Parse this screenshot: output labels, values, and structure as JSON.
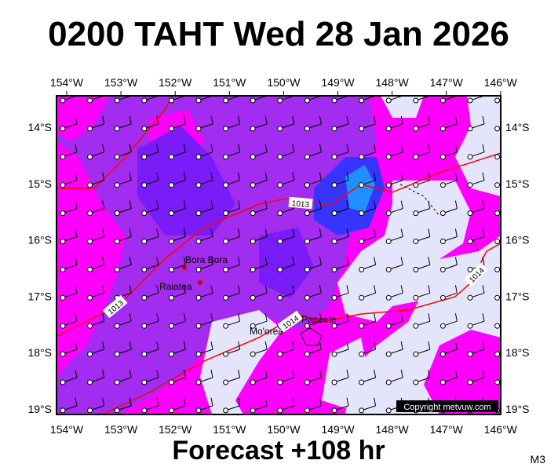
{
  "header": {
    "title": "0200 TAHT Wed 28 Jan 2026"
  },
  "map": {
    "longitudes": [
      "154°W",
      "153°W",
      "152°W",
      "151°W",
      "150°W",
      "149°W",
      "148°W",
      "147°W",
      "146°W"
    ],
    "latitudes": [
      "14°S",
      "15°S",
      "16°S",
      "17°S",
      "18°S",
      "19°S"
    ],
    "places": [
      "Bora Bora",
      "Raiatea",
      "Mo'orea",
      "Papeete"
    ],
    "isobar_labels": [
      "1013",
      "1013",
      "1014",
      "1014"
    ],
    "copyright": "Copyright metvuw.com"
  },
  "footer": {
    "forecast": "Forecast +108 hr",
    "code": "M3"
  }
}
